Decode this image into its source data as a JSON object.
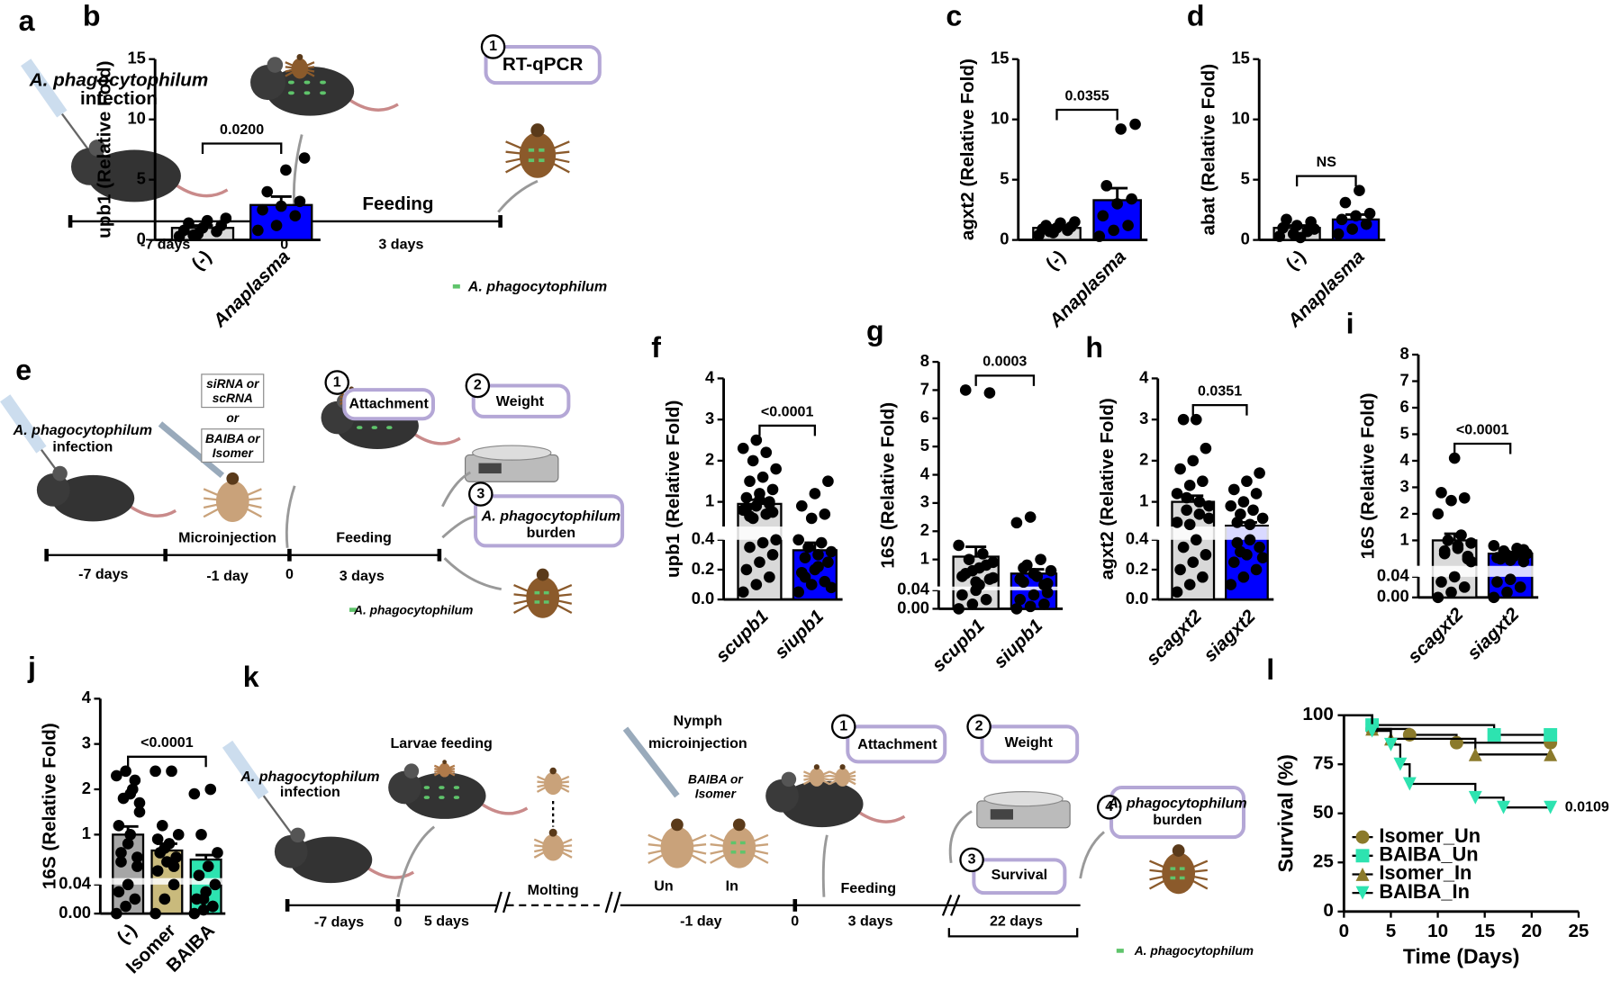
{
  "chart_data": [
    {
      "type": "dot-bar",
      "panel": "b",
      "ylabel": "upb1 (Relative Fold)",
      "categories": [
        "(-)",
        "Anaplasma"
      ],
      "colors": [
        "#d9d9d9",
        "#0000ff"
      ],
      "values": [
        1.0,
        2.9
      ],
      "errors": [
        0.2,
        0.7
      ],
      "points": [
        [
          0.3,
          0.5,
          0.7,
          0.8,
          1.0,
          1.2,
          1.4,
          1.6,
          1.8,
          0.4
        ],
        [
          0.8,
          1.2,
          2.0,
          2.5,
          2.8,
          3.2,
          4.0,
          5.8,
          6.8
        ]
      ],
      "ylim": [
        0,
        15
      ],
      "yticks": [
        0,
        5,
        10,
        15
      ],
      "annotation": "0.0200"
    },
    {
      "type": "dot-bar",
      "panel": "c",
      "ylabel": "agxt2 (Relative Fold)",
      "categories": [
        "(-)",
        "Anaplasma"
      ],
      "colors": [
        "#d9d9d9",
        "#0000ff"
      ],
      "values": [
        1.0,
        3.3
      ],
      "errors": [
        0.2,
        1.0
      ],
      "points": [
        [
          0.4,
          0.6,
          0.8,
          0.9,
          1.0,
          1.1,
          1.2,
          1.4,
          1.5,
          0.7
        ],
        [
          0.3,
          0.8,
          1.2,
          2.0,
          3.0,
          3.4,
          4.5,
          9.2,
          9.6
        ]
      ],
      "ylim": [
        0,
        15
      ],
      "yticks": [
        0,
        5,
        10,
        15
      ],
      "annotation": "0.0355"
    },
    {
      "type": "dot-bar",
      "panel": "d",
      "ylabel": "abat (Relative Fold)",
      "categories": [
        "(-)",
        "Anaplasma"
      ],
      "colors": [
        "#d9d9d9",
        "#0000ff"
      ],
      "values": [
        1.0,
        1.7
      ],
      "errors": [
        0.2,
        0.4
      ],
      "points": [
        [
          0.3,
          0.5,
          0.7,
          1.0,
          1.2,
          1.5,
          1.7,
          0.2,
          0.9
        ],
        [
          0.5,
          0.9,
          1.3,
          1.7,
          2.0,
          2.2,
          3.1,
          4.1
        ]
      ],
      "ylim": [
        0,
        15
      ],
      "yticks": [
        0,
        5,
        10,
        15
      ],
      "annotation": "NS"
    },
    {
      "type": "dot-bar",
      "panel": "f",
      "ylabel": "upb1 (Relative Fold)",
      "categories": [
        "scupb1",
        "siupb1"
      ],
      "colors": [
        "#d9d9d9",
        "#0000ff"
      ],
      "values": [
        0.95,
        0.33
      ],
      "errors": [
        0.1,
        0.05
      ],
      "points": [
        [
          0.05,
          0.1,
          0.15,
          0.2,
          0.25,
          0.3,
          0.35,
          0.38,
          0.4,
          0.6,
          0.7,
          0.8,
          0.9,
          1.0,
          1.1,
          1.2,
          1.3,
          1.5,
          1.6,
          1.8,
          2.0,
          2.2,
          2.3,
          2.5,
          0.95,
          0.85,
          1.05,
          0.75,
          0.65
        ],
        [
          0.05,
          0.1,
          0.12,
          0.18,
          0.2,
          0.25,
          0.28,
          0.3,
          0.32,
          0.35,
          0.38,
          0.4,
          0.6,
          0.7,
          0.9,
          1.2,
          1.5,
          0.15,
          0.22,
          0.08
        ]
      ],
      "ylim": [
        0,
        4
      ],
      "ybreak": 0.4,
      "yticks": [
        {
          "value": 0,
          "label": "0.0"
        },
        {
          "value": 0.2,
          "label": "0.2"
        },
        {
          "value": 0.4,
          "label": "0.4"
        },
        1,
        2,
        3,
        4
      ],
      "annotation": "<0.0001"
    },
    {
      "type": "dot-bar",
      "panel": "g",
      "ylabel": "16S (Relative Fold)",
      "categories": [
        "scupb1",
        "siupb1"
      ],
      "colors": [
        "#d9d9d9",
        "#0000ff"
      ],
      "values": [
        1.1,
        0.5
      ],
      "errors": [
        0.35,
        0.15
      ],
      "points": [
        [
          0.0,
          0.01,
          0.02,
          0.03,
          0.04,
          0.3,
          0.5,
          0.7,
          0.9,
          1.0,
          1.2,
          1.5,
          0.6,
          0.8,
          0.4,
          0.2,
          6.9,
          7.0,
          0.1,
          0.35
        ],
        [
          0.0,
          0.005,
          0.01,
          0.02,
          0.03,
          0.035,
          0.2,
          0.4,
          0.6,
          0.8,
          1.0,
          2.3,
          2.5,
          0.1,
          0.3,
          0.5,
          0.15,
          0.7
        ]
      ],
      "ylim": [
        0,
        8
      ],
      "ybreak": 0.04,
      "yticks": [
        {
          "value": 0,
          "label": "0.00"
        },
        0.04,
        1,
        2,
        3,
        4,
        5,
        6,
        7,
        8
      ],
      "annotation": "0.0003"
    },
    {
      "type": "dot-bar",
      "panel": "h",
      "ylabel": "agxt2 (Relative Fold)",
      "categories": [
        "scagxt2",
        "siagxt2"
      ],
      "colors": [
        "#d9d9d9",
        "#0000ff"
      ],
      "values": [
        1.0,
        0.42
      ],
      "errors": [
        0.15,
        0.08
      ],
      "points": [
        [
          0.05,
          0.1,
          0.15,
          0.2,
          0.25,
          0.3,
          0.35,
          0.4,
          0.6,
          0.8,
          1.0,
          1.2,
          1.4,
          1.5,
          1.8,
          2.0,
          2.3,
          3.0,
          3.0,
          0.9,
          1.1,
          0.7,
          0.5,
          0.45
        ],
        [
          0.1,
          0.15,
          0.2,
          0.25,
          0.3,
          0.35,
          0.38,
          0.4,
          0.6,
          0.7,
          0.8,
          0.9,
          1.0,
          1.2,
          1.3,
          1.5,
          1.7,
          0.5,
          0.45,
          0.28,
          0.32
        ]
      ],
      "ylim": [
        0,
        4
      ],
      "ybreak": 0.4,
      "yticks": [
        {
          "value": 0,
          "label": "0.0"
        },
        {
          "value": 0.2,
          "label": "0.2"
        },
        {
          "value": 0.4,
          "label": "0.4"
        },
        1,
        2,
        3,
        4
      ],
      "annotation": "0.0351"
    },
    {
      "type": "dot-bar",
      "panel": "i",
      "ylabel": "16S (Relative Fold)",
      "categories": [
        "scagxt2",
        "siagxt2"
      ],
      "colors": [
        "#d9d9d9",
        "#0000ff"
      ],
      "values": [
        1.0,
        0.5
      ],
      "errors": [
        0.25,
        0.06
      ],
      "points": [
        [
          0.0,
          0.01,
          0.02,
          0.03,
          0.04,
          0.3,
          0.5,
          0.7,
          0.9,
          1.0,
          1.2,
          2.0,
          2.5,
          2.6,
          2.8,
          4.1,
          0.4,
          0.6,
          0.8,
          0.2
        ],
        [
          0.0,
          0.01,
          0.02,
          0.03,
          0.035,
          0.2,
          0.3,
          0.4,
          0.5,
          0.6,
          0.7,
          0.8,
          0.45,
          0.55,
          0.35,
          0.25,
          0.65
        ]
      ],
      "ylim": [
        0,
        8
      ],
      "ybreak": 0.04,
      "yticks": [
        {
          "value": 0,
          "label": "0.00"
        },
        0.04,
        1,
        2,
        3,
        4,
        5,
        6,
        7,
        8
      ],
      "annotation": "<0.0001"
    },
    {
      "type": "dot-bar",
      "panel": "j",
      "ylabel": "16S (Relative  Fold)",
      "categories": [
        "(-)",
        "Isomer",
        "BAIBA"
      ],
      "colors": [
        "#a6a6a6",
        "#c9ba7c",
        "#2de3b0"
      ],
      "values": [
        1.0,
        0.65,
        0.45
      ],
      "errors": [
        0.18,
        0.15,
        0.1
      ],
      "points": [
        [
          0.0,
          0.01,
          0.02,
          0.03,
          0.04,
          0.3,
          0.6,
          1.0,
          1.5,
          1.8,
          2.0,
          2.3,
          2.4,
          2.2,
          1.2,
          0.8,
          0.5,
          0.4,
          1.9,
          1.7
        ],
        [
          0.0,
          0.02,
          0.04,
          0.2,
          0.4,
          0.5,
          0.6,
          0.8,
          1.0,
          1.2,
          2.4,
          2.4,
          0.7,
          0.3,
          0.9
        ],
        [
          0.0,
          0.005,
          0.01,
          0.02,
          0.03,
          0.04,
          0.1,
          0.3,
          0.6,
          1.0,
          2.0,
          1.9,
          0.02,
          0.01
        ]
      ],
      "ylim": [
        0,
        4
      ],
      "ybreak": 0.04,
      "yticks": [
        {
          "value": 0,
          "label": "0.00"
        },
        0.04,
        1,
        2,
        3,
        4
      ],
      "annotation": "<0.0001"
    },
    {
      "type": "survival",
      "panel": "l",
      "xlabel": "Time (Days)",
      "ylabel": "Survival (%)",
      "xlim": [
        0,
        25
      ],
      "xticks": [
        0,
        5,
        10,
        15,
        20,
        25
      ],
      "ylim": [
        0,
        100
      ],
      "yticks": [
        0,
        25,
        50,
        75,
        100
      ],
      "legend": "lower left",
      "annotation": "0.0109",
      "series": [
        {
          "name": "Isomer_Un",
          "color": "#8b7a2b",
          "marker": "circle",
          "x": [
            0,
            3,
            7,
            12,
            22
          ],
          "values": [
            100,
            93,
            90,
            86,
            86
          ]
        },
        {
          "name": "BAIBA_Un",
          "color": "#2de3b0",
          "marker": "square",
          "x": [
            0,
            3,
            16,
            22
          ],
          "values": [
            100,
            95,
            90,
            90
          ]
        },
        {
          "name": "Isomer_In",
          "color": "#8b7a2b",
          "marker": "triangle",
          "x": [
            0,
            3,
            5,
            14,
            22
          ],
          "values": [
            100,
            93,
            88,
            80,
            80
          ]
        },
        {
          "name": "BAIBA_In",
          "color": "#2de3b0",
          "marker": "triangle-down",
          "x": [
            0,
            3,
            5,
            6,
            7,
            14,
            17,
            22
          ],
          "values": [
            100,
            92,
            85,
            75,
            65,
            58,
            53,
            53
          ]
        }
      ]
    }
  ],
  "schematics": {
    "a": [
      "a",
      "A. phagocytophilum",
      "infection",
      "1",
      "RT-qPCR",
      "Feeding",
      "-7 days",
      "0",
      "3 days",
      "A. phagocytophilum"
    ],
    "e": [
      "e",
      "A. phagocytophilum",
      "infection",
      "siRNA or",
      "scRNA",
      "or",
      "BAIBA or",
      "Isomer",
      "1",
      "Attachment",
      "2",
      "Weight",
      "3",
      "A. phagocytophilum",
      "burden",
      "Microinjection",
      "Feeding",
      "-7 days",
      "-1 day",
      "0",
      "3 days",
      "A. phagocytophilum"
    ],
    "k": [
      "k",
      "Larvae feeding",
      "A. phagocytophilum",
      "infection",
      "Molting",
      "Nymph",
      "microinjection",
      "BAIBA or",
      "Isomer",
      "Un",
      "In",
      "1",
      "Attachment",
      "2",
      "Weight",
      "3",
      "Survival",
      "4",
      "A. phagocytophilum",
      "burden",
      "Feeding",
      "-7 days",
      "0",
      "5 days",
      "-1 day",
      "0",
      "3 days",
      "22 days",
      "A. phagocytophilum"
    ]
  }
}
